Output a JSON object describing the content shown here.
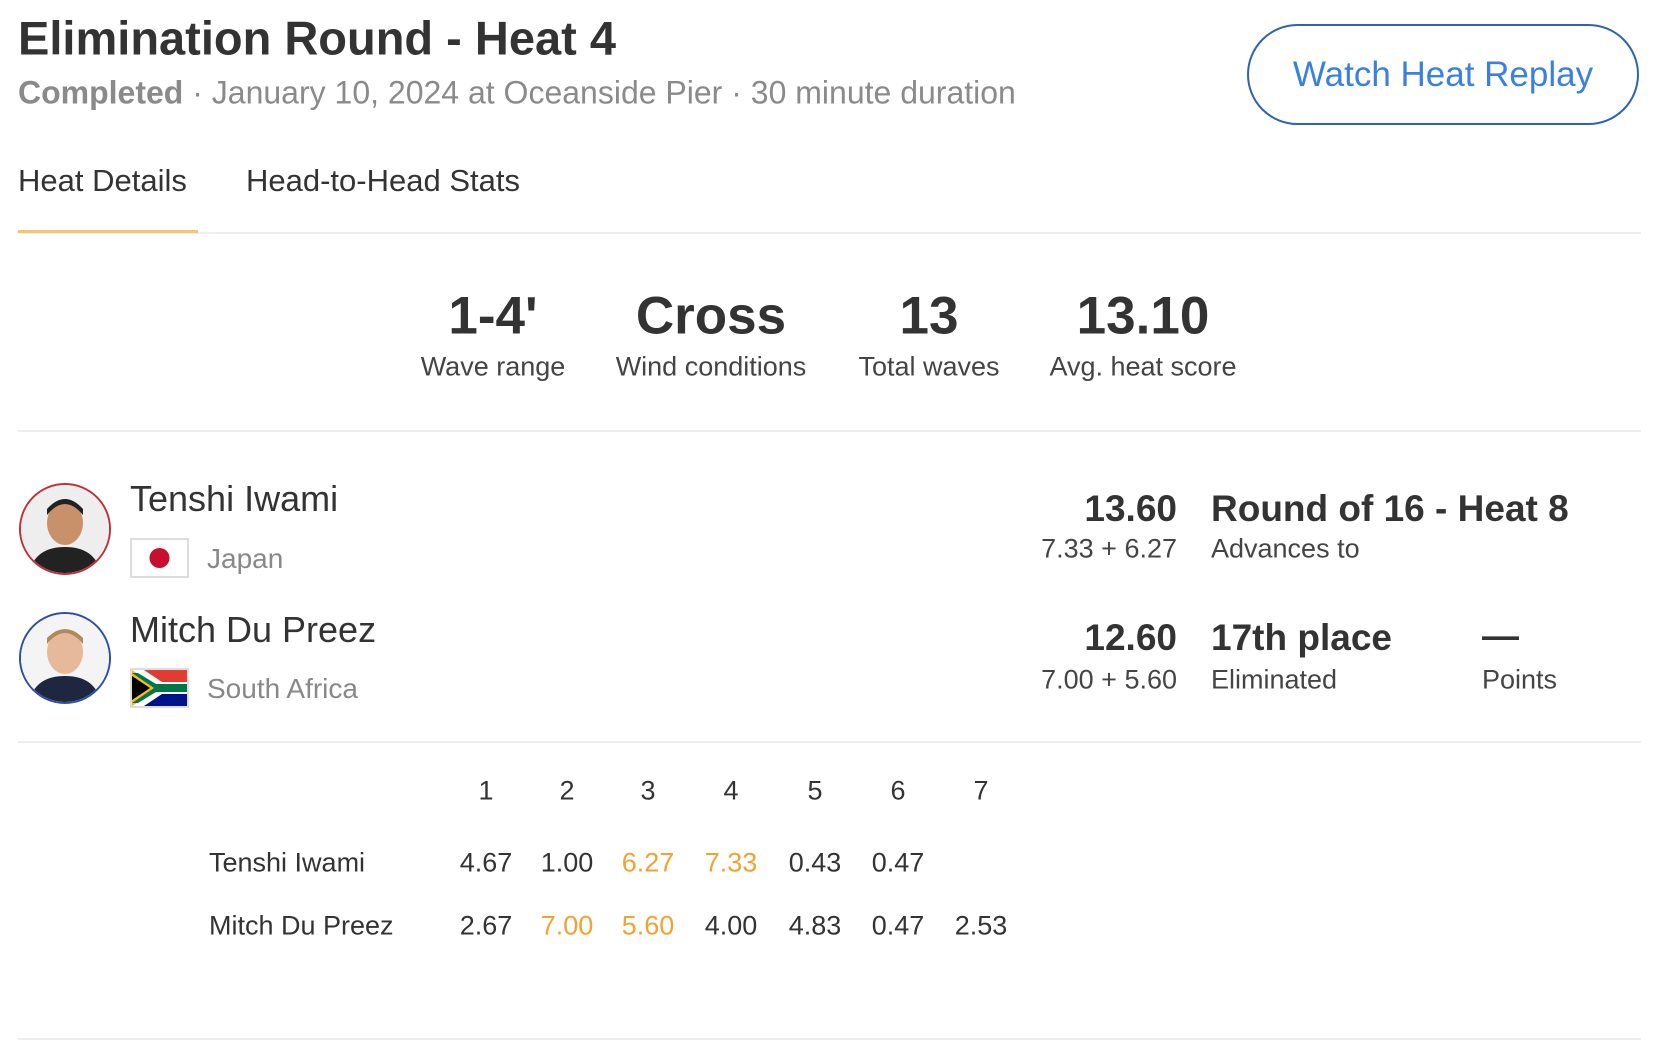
{
  "header": {
    "title": "Elimination Round - Heat 4",
    "status": "Completed",
    "details": " · January 10, 2024 at Oceanside Pier · 30 minute duration",
    "replay_button": "Watch Heat Replay"
  },
  "tabs": [
    {
      "label": "Heat Details",
      "active": true
    },
    {
      "label": "Head-to-Head Stats",
      "active": false
    }
  ],
  "stats": [
    {
      "value": "1-4'",
      "label": "Wave range"
    },
    {
      "value": "Cross",
      "label": "Wind conditions"
    },
    {
      "value": "13",
      "label": "Total waves"
    },
    {
      "value": "13.10",
      "label": "Avg. heat score"
    }
  ],
  "surfers": [
    {
      "name": "Tenshi Iwami",
      "country": "Japan",
      "flag": "japan-flag",
      "ring_color": "#c0303a",
      "score": "13.60",
      "score_breakdown": "7.33 + 6.27",
      "result": "Round of 16 - Heat 8",
      "result_sub": "Advances to"
    },
    {
      "name": "Mitch Du Preez",
      "country": "South Africa",
      "flag": "south-africa-flag",
      "ring_color": "#2e4ea0",
      "score": "12.60",
      "score_breakdown": "7.00 + 5.60",
      "result": "17th place",
      "result_sub": "Eliminated",
      "points_value": "—",
      "points_label": "Points"
    }
  ],
  "waves": {
    "headers": [
      "1",
      "2",
      "3",
      "4",
      "5",
      "6",
      "7"
    ],
    "rows": [
      {
        "name": "Tenshi Iwami",
        "scores": [
          "4.67",
          "1.00",
          "6.27",
          "7.33",
          "0.43",
          "0.47"
        ],
        "counting": [
          2,
          3
        ]
      },
      {
        "name": "Mitch Du Preez",
        "scores": [
          "2.67",
          "7.00",
          "5.60",
          "4.00",
          "4.83",
          "0.47",
          "2.53"
        ],
        "counting": [
          1,
          2
        ]
      }
    ]
  },
  "colors": {
    "accent": "#3a80e0",
    "highlight": "#f0a332",
    "tab_underline": "#f6c66e"
  }
}
